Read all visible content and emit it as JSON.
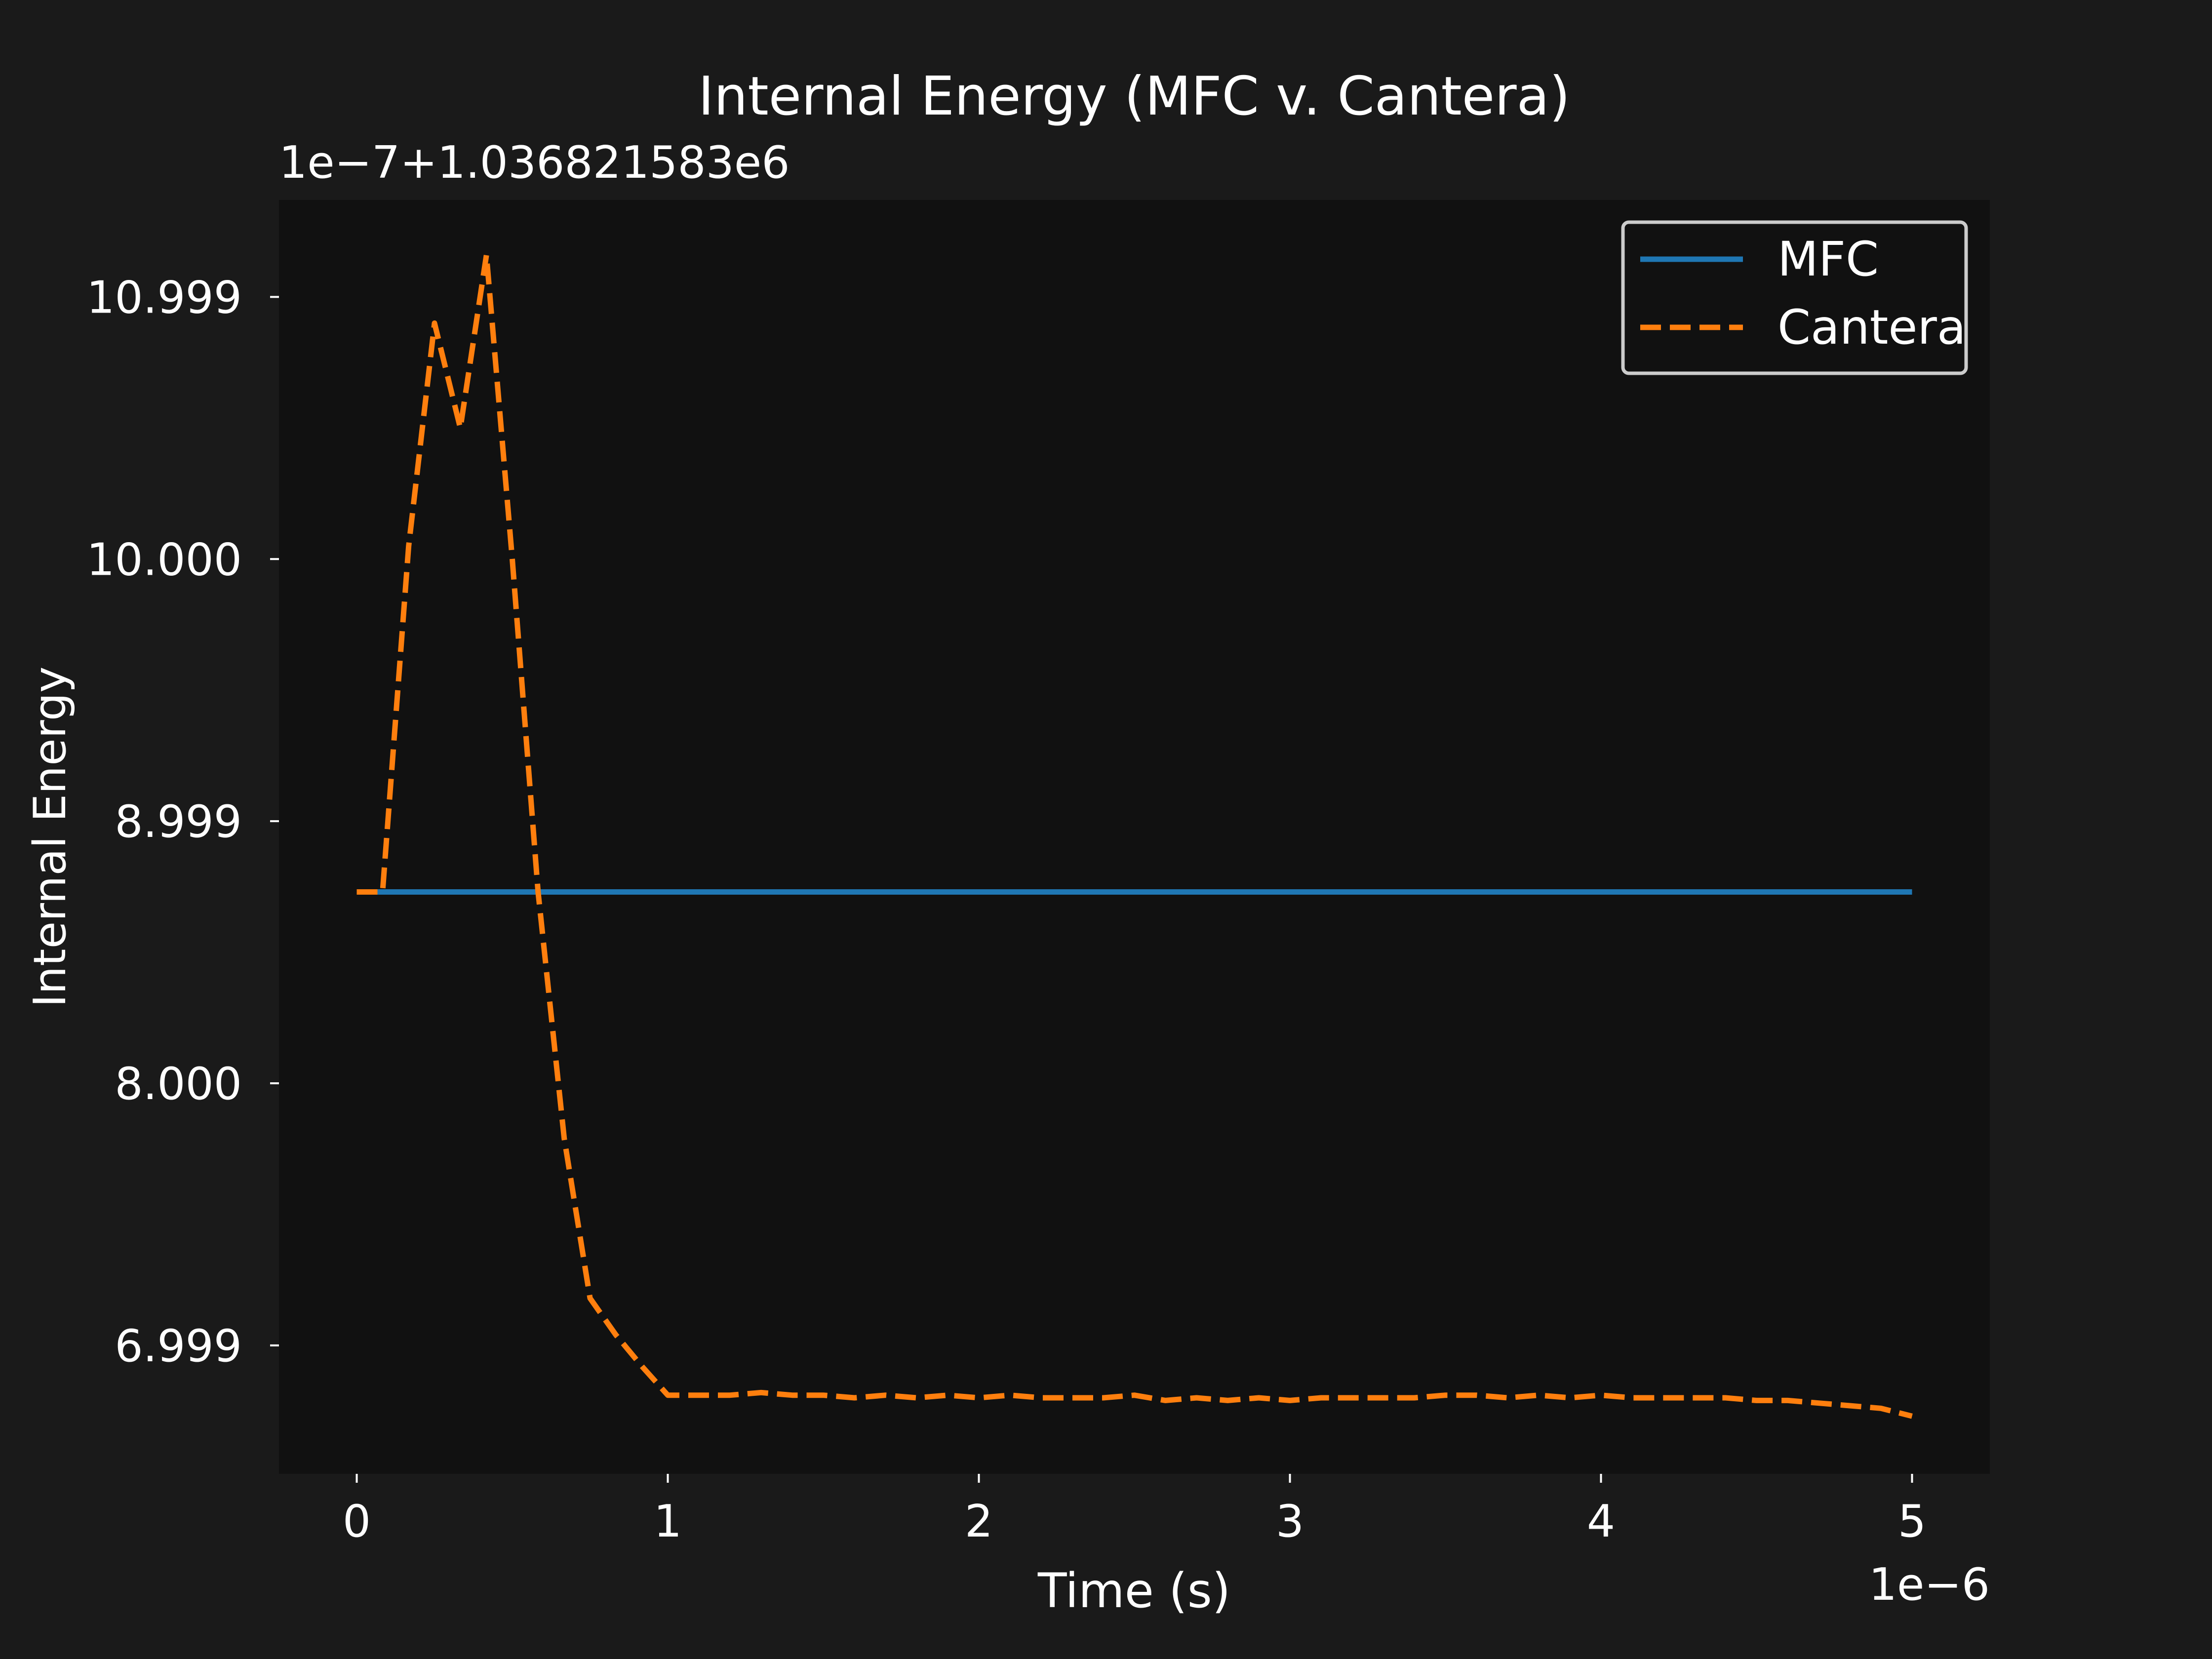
{
  "chart_data": {
    "type": "line",
    "title": "Internal Energy (MFC v. Cantera)",
    "xlabel": "Time (s)",
    "ylabel": "Internal Energy",
    "y_offset_label": "1e−7+1.036821583e6",
    "x_offset_label": "1e−6",
    "xlim": [
      -0.25,
      5.25
    ],
    "ylim": [
      6.51,
      11.37
    ],
    "xticks": [
      {
        "value": 0,
        "label": "0"
      },
      {
        "value": 1,
        "label": "1"
      },
      {
        "value": 2,
        "label": "2"
      },
      {
        "value": 3,
        "label": "3"
      },
      {
        "value": 4,
        "label": "4"
      },
      {
        "value": 5,
        "label": "5"
      }
    ],
    "yticks": [
      {
        "value": 7.0,
        "label": "6.999"
      },
      {
        "value": 8.0,
        "label": "8.000"
      },
      {
        "value": 9.0,
        "label": "8.999"
      },
      {
        "value": 10.0,
        "label": "10.000"
      },
      {
        "value": 11.0,
        "label": "10.999"
      }
    ],
    "grid": false,
    "legend_position": "top-right",
    "series": [
      {
        "name": "MFC",
        "color": "#1f77b4",
        "style": "solid",
        "x": [
          0,
          5
        ],
        "y": [
          8.73,
          8.73
        ]
      },
      {
        "name": "Cantera",
        "color": "#ff7f0e",
        "style": "dashed",
        "x": [
          0,
          0.083,
          0.167,
          0.25,
          0.333,
          0.417,
          0.5,
          0.583,
          0.667,
          0.75,
          0.833,
          0.917,
          1.0,
          1.1,
          1.2,
          1.3,
          1.4,
          1.5,
          1.6,
          1.7,
          1.8,
          1.9,
          2.0,
          2.1,
          2.2,
          2.3,
          2.4,
          2.5,
          2.6,
          2.7,
          2.8,
          2.9,
          3.0,
          3.1,
          3.2,
          3.3,
          3.4,
          3.5,
          3.6,
          3.7,
          3.8,
          3.9,
          4.0,
          4.1,
          4.2,
          4.3,
          4.4,
          4.5,
          4.6,
          4.7,
          4.8,
          4.9,
          5.0
        ],
        "y": [
          8.73,
          8.73,
          10.05,
          10.9,
          10.5,
          11.16,
          10.0,
          8.73,
          7.79,
          7.18,
          7.04,
          6.92,
          6.81,
          6.81,
          6.81,
          6.82,
          6.81,
          6.81,
          6.8,
          6.81,
          6.8,
          6.81,
          6.8,
          6.81,
          6.8,
          6.8,
          6.8,
          6.81,
          6.79,
          6.8,
          6.79,
          6.8,
          6.79,
          6.8,
          6.8,
          6.8,
          6.8,
          6.81,
          6.81,
          6.8,
          6.81,
          6.8,
          6.81,
          6.8,
          6.8,
          6.8,
          6.8,
          6.79,
          6.79,
          6.78,
          6.77,
          6.76,
          6.73
        ]
      }
    ]
  }
}
